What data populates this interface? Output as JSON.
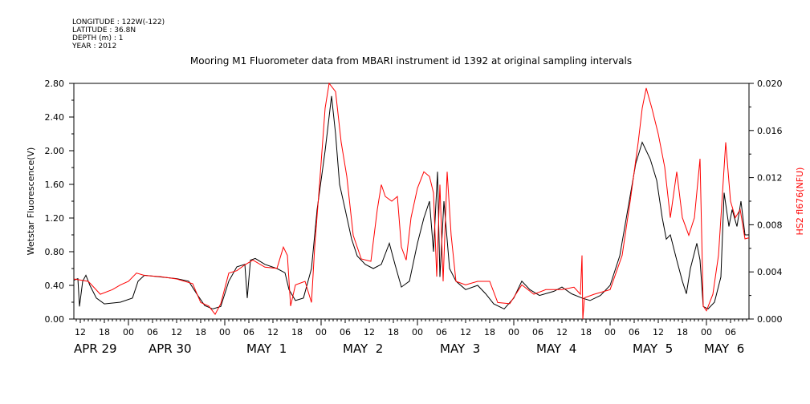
{
  "header": {
    "longitude": "LONGITUDE : 122W(-122)",
    "latitude": "LATITUDE : 36.8N",
    "depth": "DEPTH (m) : 1",
    "year": "YEAR : 2012"
  },
  "chart_data": {
    "type": "line",
    "title": "Mooring M1 Fluorometer data from MBARI instrument id 1392 at original sampling intervals",
    "ylabel": "Wetstar Fluorescence(V)",
    "y2label": "HS2 fl676(NFU)",
    "xlabel": "",
    "x_units": "hours since APR 29 2012 00:00",
    "xlim": [
      10.4,
      178.6
    ],
    "ylim": [
      0,
      2.8
    ],
    "y2lim": [
      0,
      0.02
    ],
    "yticks": [
      "0.00",
      "0.40",
      "0.80",
      "1.20",
      "1.60",
      "2.00",
      "2.40",
      "2.80"
    ],
    "y2ticks": [
      "0.000",
      "0.004",
      "0.008",
      "0.012",
      "0.016",
      "0.020"
    ],
    "x_hour_ticks": [
      "12",
      "18",
      "00",
      "06",
      "12",
      "18",
      "00",
      "06",
      "12",
      "18",
      "00",
      "06",
      "12",
      "18",
      "00",
      "06",
      "12",
      "18",
      "00",
      "06",
      "12",
      "18",
      "00",
      "06",
      "12",
      "18",
      "00",
      "06",
      "12",
      "18",
      "00",
      "06"
    ],
    "x_day_labels": [
      "APR 29",
      "APR 30",
      "MAY  1",
      "MAY  2",
      "MAY  3",
      "MAY  4",
      "MAY  5",
      "MAY  6"
    ],
    "grid": false,
    "series": [
      {
        "name": "Wetstar Fluorescence(V)",
        "axis": "left",
        "color": "#000000",
        "x": [
          10.4,
          11.4,
          11.8,
          12.6,
          13.4,
          14.4,
          16,
          18,
          22,
          25,
          26.4,
          28,
          32,
          36,
          39,
          41,
          43,
          45,
          47,
          49,
          51,
          53,
          53.6,
          54.4,
          55.6,
          58,
          61,
          63,
          64,
          65.6,
          67.6,
          69.6,
          71,
          73,
          74.6,
          75.6,
          76.6,
          78,
          79.6,
          81,
          83,
          85,
          87,
          89,
          90.4,
          92,
          94,
          96,
          97.6,
          99,
          100,
          101,
          101.6,
          102.6,
          104,
          105.6,
          108,
          111,
          113,
          115,
          117.6,
          120,
          122,
          124,
          126.4,
          130,
          132,
          134.4,
          137,
          139,
          141.6,
          144,
          146.4,
          148.4,
          150.4,
          152,
          154,
          155.6,
          157,
          158,
          159,
          160.6,
          162,
          163,
          164,
          165.6,
          166.4,
          167.2,
          168.4,
          170,
          171.6,
          172.4,
          173.6,
          174.4,
          175.6,
          176.6,
          177.6,
          178.6
        ],
        "y": [
          0.46,
          0.48,
          0.15,
          0.45,
          0.52,
          0.4,
          0.25,
          0.18,
          0.2,
          0.25,
          0.45,
          0.52,
          0.5,
          0.48,
          0.45,
          0.3,
          0.16,
          0.12,
          0.15,
          0.45,
          0.62,
          0.65,
          0.25,
          0.7,
          0.72,
          0.65,
          0.6,
          0.55,
          0.35,
          0.22,
          0.25,
          0.6,
          1.3,
          2.0,
          2.65,
          2.2,
          1.6,
          1.3,
          0.95,
          0.75,
          0.65,
          0.6,
          0.65,
          0.9,
          0.65,
          0.38,
          0.45,
          0.9,
          1.2,
          1.4,
          0.8,
          1.75,
          0.5,
          1.4,
          0.6,
          0.45,
          0.35,
          0.4,
          0.3,
          0.18,
          0.12,
          0.25,
          0.45,
          0.35,
          0.28,
          0.33,
          0.38,
          0.3,
          0.25,
          0.22,
          0.28,
          0.4,
          0.75,
          1.3,
          1.85,
          2.1,
          1.9,
          1.65,
          1.2,
          0.95,
          1.0,
          0.7,
          0.45,
          0.3,
          0.6,
          0.9,
          0.7,
          0.15,
          0.12,
          0.2,
          0.5,
          1.5,
          1.1,
          1.3,
          1.1,
          1.4,
          1.0,
          1.0
        ]
      },
      {
        "name": "HS2 fl676(NFU)",
        "axis": "right",
        "color": "#ff0000",
        "x": [
          10.4,
          14,
          17,
          20,
          22,
          24,
          26,
          28,
          32,
          36,
          40,
          42,
          44,
          45.6,
          47,
          49,
          51,
          53,
          55,
          58,
          61,
          62.6,
          63.6,
          64.4,
          65.6,
          68,
          69.6,
          70.4,
          71.6,
          73,
          74,
          75.6,
          77,
          78.4,
          80,
          82,
          84.4,
          86,
          87,
          88,
          89.6,
          91,
          92,
          93.2,
          94.4,
          96,
          97.6,
          99,
          100,
          100.8,
          101.6,
          102.4,
          103.4,
          104.4,
          105.6,
          108,
          111,
          114,
          116,
          119,
          122,
          125,
          128,
          132,
          135,
          136.6,
          137,
          137.2,
          137.6,
          140,
          144,
          147,
          149,
          151,
          152,
          153,
          154.4,
          156,
          157.6,
          159,
          160.6,
          162,
          163.6,
          165,
          166.4,
          167.2,
          168,
          169.6,
          171,
          172,
          172.8,
          174,
          175.2,
          176.4,
          177.6,
          178.6
        ],
        "y": [
          0.0034,
          0.0032,
          0.0021,
          0.0025,
          0.0029,
          0.0032,
          0.0039,
          0.0037,
          0.0036,
          0.0034,
          0.003,
          0.0014,
          0.0011,
          0.0004,
          0.0013,
          0.0039,
          0.0041,
          0.0046,
          0.005,
          0.0044,
          0.0043,
          0.0061,
          0.0054,
          0.0011,
          0.0029,
          0.0032,
          0.0014,
          0.0061,
          0.0114,
          0.0179,
          0.02,
          0.0193,
          0.015,
          0.0121,
          0.0071,
          0.0051,
          0.0049,
          0.0093,
          0.0114,
          0.0104,
          0.01,
          0.0104,
          0.0061,
          0.005,
          0.0086,
          0.0111,
          0.0125,
          0.0121,
          0.0107,
          0.0036,
          0.0114,
          0.0032,
          0.0125,
          0.0071,
          0.0032,
          0.0029,
          0.0032,
          0.0032,
          0.0014,
          0.0013,
          0.0029,
          0.0021,
          0.0025,
          0.0025,
          0.0027,
          0.0021,
          0.0054,
          0.0,
          0.0018,
          0.0021,
          0.0025,
          0.0054,
          0.01,
          0.015,
          0.0179,
          0.0196,
          0.0179,
          0.0157,
          0.0129,
          0.0086,
          0.0125,
          0.0086,
          0.0071,
          0.0086,
          0.0136,
          0.0011,
          0.0007,
          0.0021,
          0.0054,
          0.0107,
          0.015,
          0.01,
          0.0086,
          0.0093,
          0.0068,
          0.0069
        ]
      }
    ]
  }
}
